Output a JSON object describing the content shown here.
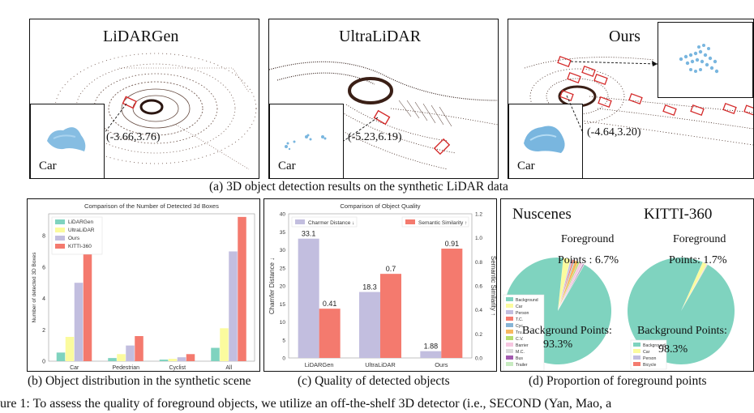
{
  "panel_a": {
    "views": [
      {
        "title": "LiDARGen",
        "coord": "(-3.66,3.76)",
        "inset_label": "Car"
      },
      {
        "title": "UltraLiDAR",
        "coord": "(-5.23,6.19)",
        "inset_label": "Car"
      },
      {
        "title": "Ours",
        "coord": "(-4.64,3.20)",
        "inset_label": "Car"
      }
    ],
    "caption": "(a) 3D object detection results on the synthetic LiDAR data"
  },
  "panel_b": {
    "caption": "(b) Object distribution in the synthetic scene",
    "chart_data": {
      "type": "bar",
      "title": "Comparison of the Number of Detected 3d Boxes",
      "xlabel": "",
      "ylabel": "Number of detected 3D Boxes",
      "ylim": [
        0,
        9.4
      ],
      "yticks": [
        0,
        2,
        4,
        6,
        8
      ],
      "categories": [
        "Car",
        "Pedestrian",
        "Cyclist",
        "All"
      ],
      "series": [
        {
          "name": "LiDARGen",
          "color": "#7fd3bf",
          "values": [
            0.55,
            0.2,
            0.1,
            0.85
          ]
        },
        {
          "name": "UltraLiDAR",
          "color": "#fbfb9e",
          "values": [
            1.55,
            0.45,
            0.15,
            2.1
          ]
        },
        {
          "name": "Ours",
          "color": "#c2bedf",
          "values": [
            5.0,
            1.0,
            0.25,
            7.0
          ]
        },
        {
          "name": "KITTI-360",
          "color": "#f47a6e",
          "values": [
            7.0,
            1.6,
            0.45,
            9.2
          ]
        }
      ],
      "legend": "top-left"
    }
  },
  "panel_c": {
    "caption": "(c) Quality of detected objects",
    "chart_data": {
      "type": "bar",
      "title": "Comparison of Object Quality",
      "categories": [
        "LiDARGen",
        "UltraLiDAR",
        "Ours"
      ],
      "ylabel_left": "Chamfer Distance ↓",
      "ylabel_right": "Semantic Similarity ↑",
      "ylim_left": [
        0,
        40
      ],
      "yticks_left": [
        0,
        5,
        10,
        15,
        20,
        25,
        30,
        35,
        40
      ],
      "ylim_right": [
        0,
        1.2
      ],
      "yticks_right": [
        "0.0",
        "0.2",
        "0.4",
        "0.6",
        "0.8",
        "1.0",
        "1.2"
      ],
      "series": [
        {
          "name": "Charmer Distance ↓",
          "axis": "left",
          "color": "#c2bedf",
          "values": [
            33.1,
            18.3,
            1.88
          ],
          "labels": [
            "33.1",
            "18.3",
            "1.88"
          ]
        },
        {
          "name": "Semantic Similarity ↑",
          "axis": "right",
          "color": "#f47a6e",
          "values": [
            0.41,
            0.7,
            0.91
          ],
          "labels": [
            "0.41",
            "0.7",
            "0.91"
          ]
        }
      ]
    }
  },
  "panel_d": {
    "caption": "(d) Proportion of foreground points",
    "pies": [
      {
        "title": "Nuscenes",
        "foreground_label": "Foreground",
        "foreground_value": "Points : 6.7%",
        "background_label": "Background Points:",
        "background_value": "93.3%"
      },
      {
        "title": "KITTI-360",
        "foreground_label": "Foreground",
        "foreground_value": "Points: 1.7%",
        "background_label": "Background Points:",
        "background_value": "98.3%"
      }
    ],
    "chart_data": [
      {
        "type": "pie",
        "title": "Nuscenes",
        "labels": [
          "Background",
          "Car",
          "Person",
          "T.C.",
          "Cyc.",
          "Tru",
          "C.V.",
          "Barrier",
          "M.C.",
          "Bus",
          "Trailer"
        ],
        "values": [
          93.3,
          2.2,
          0.6,
          0.5,
          0.3,
          1.0,
          0.5,
          0.9,
          0.2,
          0.3,
          0.2
        ],
        "colors": [
          "#7fd3bf",
          "#fbfb9e",
          "#c2bedf",
          "#f47a6e",
          "#86b4d6",
          "#f7b85e",
          "#b6dc6e",
          "#f6c6e0",
          "#d9d9d9",
          "#a35bb0",
          "#c7ebc0"
        ]
      },
      {
        "type": "pie",
        "title": "KITTI-360",
        "labels": [
          "Background",
          "Car",
          "Person",
          "Bicycle"
        ],
        "values": [
          98.3,
          1.4,
          0.2,
          0.1
        ],
        "colors": [
          "#7fd3bf",
          "#fbfb9e",
          "#c2bedf",
          "#f47a6e"
        ]
      }
    ]
  },
  "figure_caption": "ure 1: To assess the quality of foreground objects, we utilize an off-the-shelf 3D detector (i.e., SECOND (Yan, Mao, a"
}
